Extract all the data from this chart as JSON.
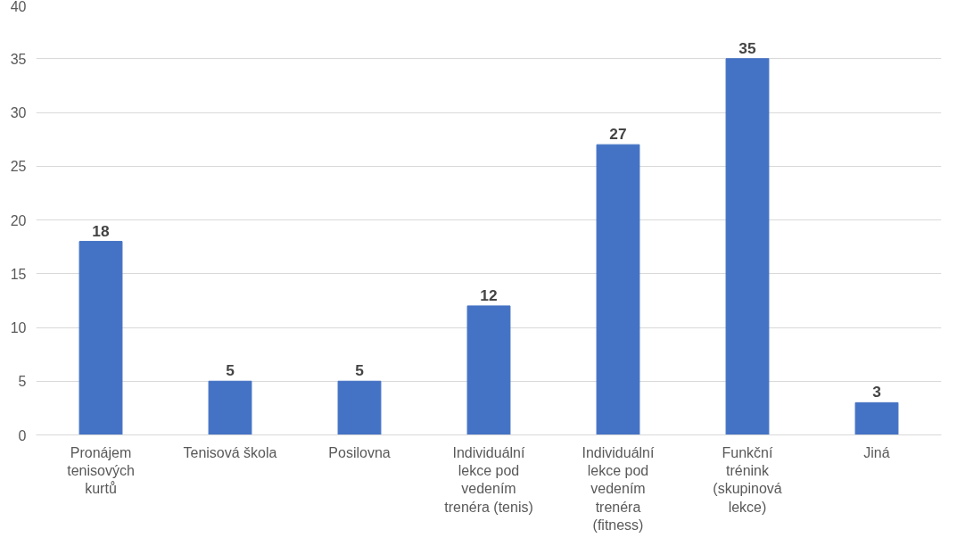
{
  "chart_data": {
    "type": "bar",
    "categories": [
      "Pronájem\ntenisových\nkurtů",
      "Tenisová škola",
      "Posilovna",
      "Individuální\nlekce pod\nvedením\ntrenéra (tenis)",
      "Individuální\nlekce pod\nvedením\ntrenéra\n(fitness)",
      "Funkční\ntrénink\n(skupinová\nlekce)",
      "Jiná"
    ],
    "values": [
      18,
      5,
      5,
      12,
      27,
      35,
      3
    ],
    "color": "#4472c4",
    "ylim": [
      0,
      40
    ],
    "yticks": [
      0,
      5,
      10,
      15,
      20,
      25,
      30,
      35,
      40
    ],
    "grid": "y",
    "data_labels": true
  }
}
